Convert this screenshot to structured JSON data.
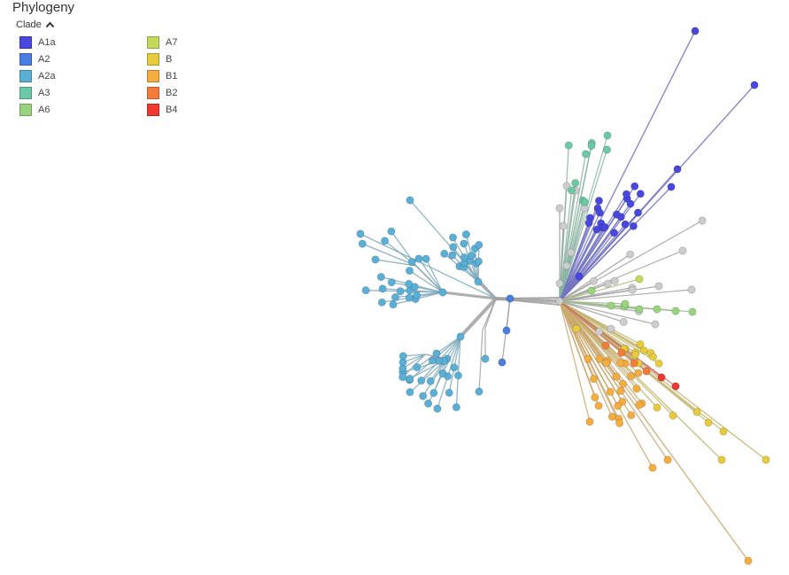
{
  "panel": {
    "title": "Phylogeny",
    "color_by_label": "Clade"
  },
  "legend": [
    {
      "name": "A1a",
      "color": "#4848e0"
    },
    {
      "name": "A2",
      "color": "#4a7ee0"
    },
    {
      "name": "A2a",
      "color": "#5aafd6"
    },
    {
      "name": "A3",
      "color": "#6cc9a6"
    },
    {
      "name": "A6",
      "color": "#98d47e"
    },
    {
      "name": "A7",
      "color": "#c4d85a"
    },
    {
      "name": "B",
      "color": "#e6cc3c"
    },
    {
      "name": "B1",
      "color": "#f4ad3e"
    },
    {
      "name": "B2",
      "color": "#f47c3a"
    },
    {
      "name": "B4",
      "color": "#ee3a2e"
    }
  ],
  "colors": {
    "internal_node": "#cccccc",
    "branch": "#a0a0a0"
  }
}
